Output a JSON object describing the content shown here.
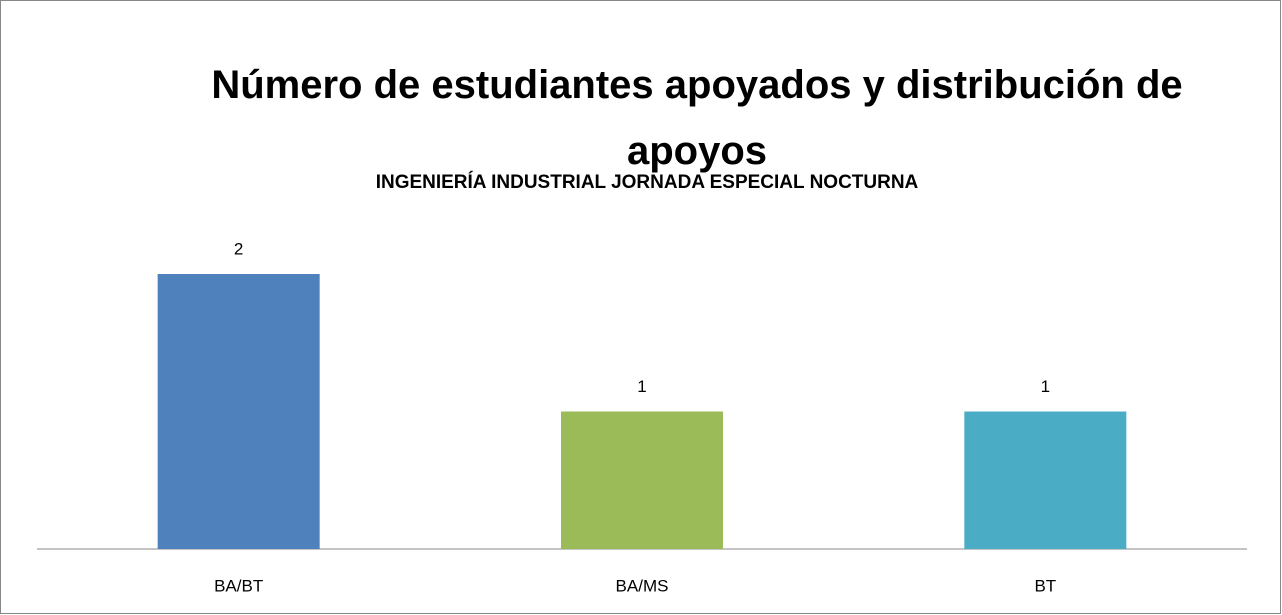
{
  "chart_data": {
    "type": "bar",
    "title": "Número de estudiantes apoyados y distribución de apoyos",
    "subtitle": "INGENIERÍA INDUSTRIAL JORNADA ESPECIAL NOCTURNA",
    "categories": [
      "BA/BT",
      "BA/MS",
      "BT"
    ],
    "values": [
      2,
      1,
      1
    ],
    "colors": [
      "#4f81bd",
      "#9bbb59",
      "#4bacc6"
    ]
  }
}
